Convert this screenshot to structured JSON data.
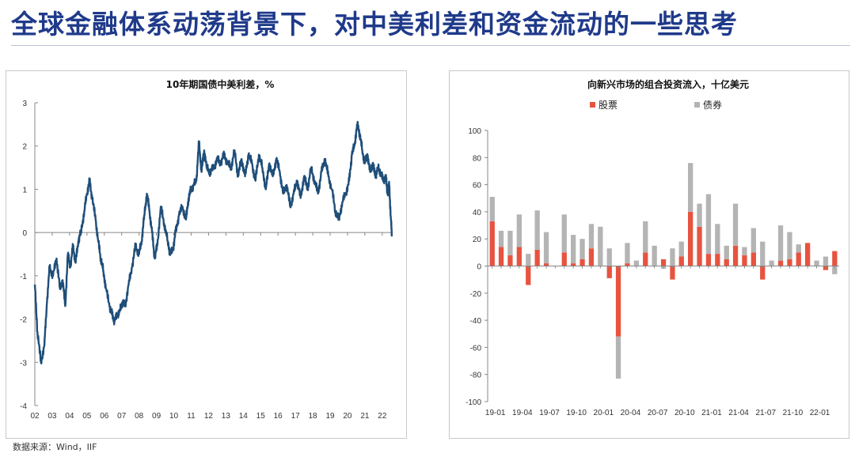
{
  "page": {
    "title": "全球金融体系动荡背景下，对中美利差和资金流动的一些思考",
    "source_note": "数据来源：Wind，IIF",
    "colors": {
      "title": "#1f3a8a",
      "line": "#1f4e79",
      "equity": "#e8533f",
      "bond": "#b4b4b4"
    }
  },
  "chart_data": [
    {
      "type": "line",
      "title": "10年期国债中美利差，%",
      "xlabel": "",
      "ylabel": "",
      "ylim": [
        -4,
        3
      ],
      "yticks": [
        "-4",
        "-3",
        "-2",
        "-1",
        "0",
        "1",
        "2",
        "3"
      ],
      "xticks": [
        "02",
        "03",
        "04",
        "05",
        "06",
        "07",
        "08",
        "09",
        "10",
        "11",
        "12",
        "13",
        "14",
        "15",
        "16",
        "17",
        "18",
        "19",
        "20",
        "21",
        "22"
      ],
      "x_range": [
        2002.0,
        2022.6
      ],
      "grid": false,
      "series": [
        {
          "x": [
            2002.0,
            2002.15,
            2002.35,
            2002.55,
            2002.7,
            2002.85,
            2003.05,
            2003.25,
            2003.45,
            2003.6,
            2003.75,
            2003.9,
            2004.05,
            2004.2,
            2004.35,
            2004.5,
            2004.65,
            2004.85,
            2005.0,
            2005.15,
            2005.3,
            2005.5,
            2005.65,
            2005.8,
            2005.95,
            2006.1,
            2006.3,
            2006.45,
            2006.6,
            2006.75,
            2006.9,
            2007.05,
            2007.2,
            2007.4,
            2007.6,
            2007.8,
            2008.0,
            2008.15,
            2008.3,
            2008.45,
            2008.6,
            2008.75,
            2008.9,
            2009.05,
            2009.25,
            2009.45,
            2009.65,
            2009.8,
            2009.95,
            2010.1,
            2010.3,
            2010.5,
            2010.7,
            2010.85,
            2011.0,
            2011.15,
            2011.3,
            2011.45,
            2011.6,
            2011.75,
            2011.9,
            2012.1,
            2012.3,
            2012.5,
            2012.7,
            2012.9,
            2013.1,
            2013.3,
            2013.5,
            2013.7,
            2013.9,
            2014.1,
            2014.3,
            2014.5,
            2014.7,
            2014.9,
            2015.1,
            2015.3,
            2015.5,
            2015.7,
            2015.9,
            2016.1,
            2016.3,
            2016.5,
            2016.7,
            2016.9,
            2017.1,
            2017.3,
            2017.5,
            2017.7,
            2017.9,
            2018.1,
            2018.3,
            2018.5,
            2018.7,
            2018.9,
            2019.1,
            2019.3,
            2019.5,
            2019.7,
            2019.9,
            2020.1,
            2020.25,
            2020.4,
            2020.55,
            2020.7,
            2020.85,
            2021.0,
            2021.15,
            2021.3,
            2021.45,
            2021.6,
            2021.75,
            2021.9,
            2022.05,
            2022.2,
            2022.3,
            2022.4,
            2022.5,
            2022.55
          ],
          "values": [
            -1.2,
            -2.3,
            -3.0,
            -2.6,
            -1.6,
            -0.8,
            -1.0,
            -0.6,
            -1.3,
            -1.1,
            -1.7,
            -0.5,
            -0.8,
            -0.3,
            -0.7,
            -0.2,
            0.0,
            0.5,
            0.9,
            1.2,
            0.8,
            0.3,
            -0.2,
            -0.6,
            -0.9,
            -1.3,
            -1.7,
            -1.9,
            -2.05,
            -1.9,
            -1.8,
            -1.6,
            -1.7,
            -1.2,
            -0.8,
            -0.3,
            -0.5,
            -0.2,
            0.4,
            0.9,
            0.5,
            0.0,
            -0.6,
            -0.3,
            0.6,
            0.2,
            -0.2,
            -0.5,
            -0.4,
            0.0,
            0.4,
            0.6,
            0.3,
            0.8,
            1.0,
            1.1,
            1.2,
            2.1,
            1.4,
            1.9,
            1.5,
            1.4,
            1.5,
            1.7,
            1.6,
            1.8,
            1.6,
            1.5,
            1.9,
            1.3,
            1.7,
            1.3,
            1.8,
            1.6,
            1.2,
            1.8,
            1.5,
            1.0,
            1.6,
            1.3,
            1.7,
            1.4,
            0.9,
            1.1,
            0.6,
            0.9,
            1.2,
            0.8,
            1.3,
            1.0,
            1.5,
            1.2,
            0.9,
            1.4,
            1.7,
            1.3,
            1.0,
            0.5,
            0.3,
            0.7,
            0.9,
            1.2,
            1.8,
            2.0,
            2.5,
            2.3,
            1.9,
            1.6,
            1.8,
            1.4,
            1.6,
            1.3,
            1.5,
            1.4,
            1.2,
            1.3,
            0.9,
            1.1,
            0.3,
            -0.05
          ]
        }
      ]
    },
    {
      "type": "bar",
      "title": "向新兴市场的组合投资流入，十亿美元",
      "legend_position": "top",
      "ylim": [
        -100,
        100
      ],
      "yticks": [
        "-100",
        "-80",
        "-60",
        "-40",
        "-20",
        "0",
        "20",
        "40",
        "60",
        "80",
        "100"
      ],
      "xtick_labels": [
        "19-01",
        "19-04",
        "19-07",
        "19-10",
        "20-01",
        "20-04",
        "20-07",
        "20-10",
        "21-01",
        "21-04",
        "21-07",
        "21-10",
        "22-01"
      ],
      "categories": [
        "19-01",
        "19-02",
        "19-03",
        "19-04",
        "19-05",
        "19-06",
        "19-07",
        "19-08",
        "19-09",
        "19-10",
        "19-11",
        "19-12",
        "20-01",
        "20-02",
        "20-03",
        "20-04",
        "20-05",
        "20-06",
        "20-07",
        "20-08",
        "20-09",
        "20-10",
        "20-11",
        "20-12",
        "21-01",
        "21-02",
        "21-03",
        "21-04",
        "21-05",
        "21-06",
        "21-07",
        "21-08",
        "21-09",
        "21-10",
        "21-11",
        "21-12",
        "22-01",
        "22-02",
        "22-03"
      ],
      "series": [
        {
          "name": "股票",
          "values": [
            33,
            14,
            8,
            14,
            -14,
            12,
            2,
            0,
            10,
            2,
            5,
            13,
            0,
            -9,
            -52,
            2,
            0,
            10,
            0,
            5,
            -10,
            7,
            40,
            29,
            9,
            9,
            5,
            15,
            8,
            10,
            -10,
            0,
            4,
            5,
            10,
            17,
            0,
            -3,
            11
          ]
        },
        {
          "name": "债券",
          "values": [
            18,
            12,
            18,
            24,
            9,
            29,
            23,
            0,
            28,
            21,
            15,
            18,
            29,
            13,
            -31,
            15,
            4,
            23,
            15,
            -2,
            13,
            11,
            36,
            17,
            44,
            22,
            10,
            31,
            6,
            18,
            18,
            4,
            26,
            20,
            6,
            0,
            4,
            7,
            -6
          ]
        }
      ]
    }
  ]
}
